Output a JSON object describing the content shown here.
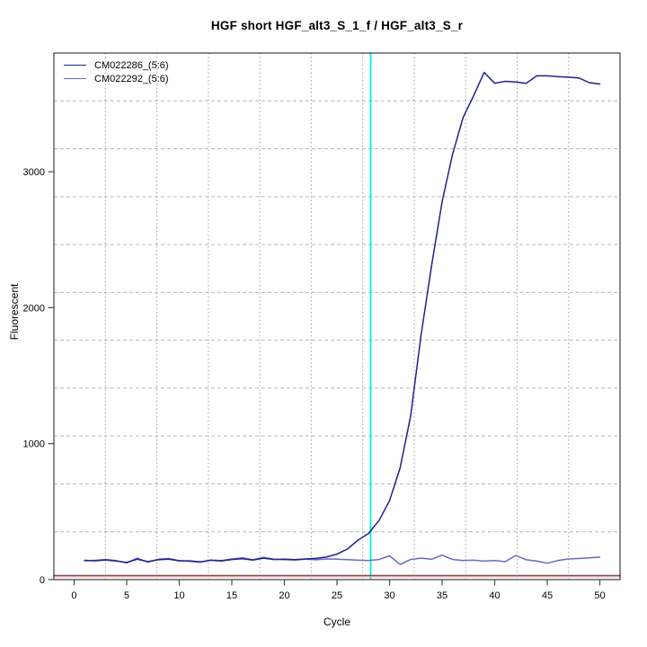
{
  "chart_data": {
    "type": "line",
    "title": "HGF short HGF_alt3_S_1_f / HGF_alt3_S_r",
    "xlabel": "Cycle",
    "ylabel": "Fluorescent",
    "xlim": [
      -1.92,
      51.92
    ],
    "ylim": [
      0,
      3873
    ],
    "x_ticks": [
      0,
      5,
      10,
      15,
      20,
      25,
      30,
      35,
      40,
      45,
      50
    ],
    "y_ticks": [
      0,
      1000,
      2000,
      3000
    ],
    "grid": {
      "divisions_x": 11,
      "divisions_y": 11,
      "color_h": "#b8b8b8",
      "color_v": "#9c9c9c",
      "style_h": "dashed",
      "style_v": "dotted"
    },
    "legend_position": "top-left",
    "axis_color": "#4a4a4a",
    "text_color": "#000000",
    "x": [
      1,
      2,
      3,
      4,
      5,
      6,
      7,
      8,
      9,
      10,
      11,
      12,
      13,
      14,
      15,
      16,
      17,
      18,
      19,
      20,
      21,
      22,
      23,
      24,
      25,
      26,
      27,
      28,
      29,
      30,
      31,
      32,
      33,
      34,
      35,
      36,
      37,
      38,
      39,
      40,
      41,
      42,
      43,
      44,
      45,
      46,
      47,
      48,
      49,
      50
    ],
    "series": [
      {
        "name": "CM022286_(5:6)",
        "color": "#20208c",
        "values": [
          142,
          138,
          145,
          136,
          126,
          150,
          132,
          146,
          150,
          138,
          138,
          130,
          142,
          137,
          148,
          154,
          144,
          158,
          148,
          150,
          147,
          152,
          156,
          166,
          188,
          225,
          290,
          340,
          435,
          580,
          820,
          1200,
          1800,
          2310,
          2780,
          3130,
          3400,
          3560,
          3730,
          3650,
          3665,
          3660,
          3650,
          3705,
          3705,
          3700,
          3695,
          3690,
          3655,
          3645
        ]
      },
      {
        "name": "CM022292_(5:6)",
        "color": "#6968c5",
        "values": [
          138,
          142,
          148,
          140,
          122,
          158,
          128,
          150,
          155,
          140,
          134,
          128,
          144,
          140,
          152,
          160,
          146,
          163,
          150,
          147,
          144,
          150,
          146,
          152,
          150,
          147,
          143,
          140,
          148,
          175,
          112,
          148,
          158,
          150,
          180,
          148,
          140,
          143,
          136,
          140,
          132,
          178,
          146,
          136,
          120,
          140,
          152,
          155,
          160,
          165
        ]
      }
    ],
    "threshold_vline": {
      "x": 28.2,
      "color": "#00efef"
    },
    "baseline_hline": {
      "y": 26,
      "color_dark": "#8a4a4a",
      "color_light": "#d49a9a"
    }
  }
}
